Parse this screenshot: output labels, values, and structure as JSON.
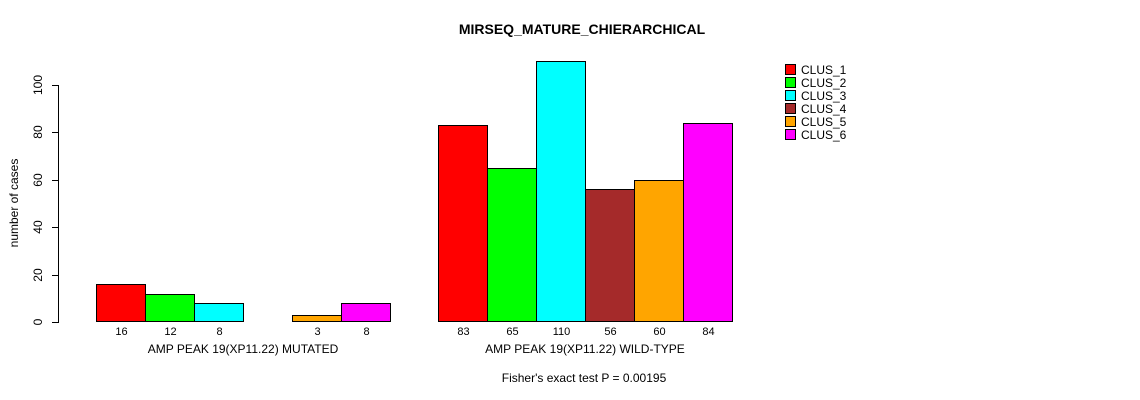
{
  "chart_data": {
    "type": "bar",
    "title": "MIRSEQ_MATURE_CHIERARCHICAL",
    "ylabel": "number of cases",
    "xlabel": "",
    "yticks": [
      0,
      20,
      40,
      60,
      80,
      100
    ],
    "ylim": [
      0,
      110
    ],
    "grid": false,
    "legend_position": "top-right",
    "categories": [
      "AMP PEAK 19(XP11.22) MUTATED",
      "AMP PEAK 19(XP11.22) WILD-TYPE"
    ],
    "series": [
      {
        "name": "CLUS_1",
        "color": "#ff0000",
        "values": [
          16,
          83
        ]
      },
      {
        "name": "CLUS_2",
        "color": "#00ff00",
        "values": [
          12,
          65
        ]
      },
      {
        "name": "CLUS_3",
        "color": "#00ffff",
        "values": [
          8,
          110
        ]
      },
      {
        "name": "CLUS_4",
        "color": "#a52a2a",
        "values": [
          null,
          56
        ]
      },
      {
        "name": "CLUS_5",
        "color": "#ffa500",
        "values": [
          3,
          60
        ]
      },
      {
        "name": "CLUS_6",
        "color": "#ff00ff",
        "values": [
          8,
          84
        ]
      }
    ],
    "bar_value_labels": true,
    "annotation": "Fisher's exact test P = 0.00195"
  },
  "colors": {
    "background": "#ffffff",
    "axis": "#000000",
    "text": "#000000"
  }
}
